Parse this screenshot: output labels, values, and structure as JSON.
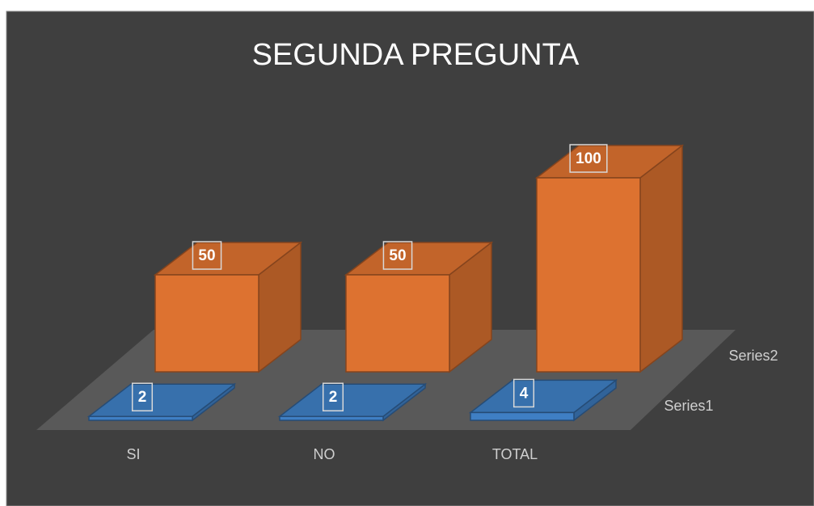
{
  "chart_data": {
    "type": "bar3d",
    "title": "SEGUNDA PREGUNTA",
    "categories": [
      "SI",
      "NO",
      "TOTAL"
    ],
    "series": [
      {
        "name": "Series1",
        "color": "#3f7fc4",
        "values": [
          2,
          2,
          4
        ]
      },
      {
        "name": "Series2",
        "color": "#dd7230",
        "values": [
          50,
          50,
          100
        ]
      }
    ]
  }
}
